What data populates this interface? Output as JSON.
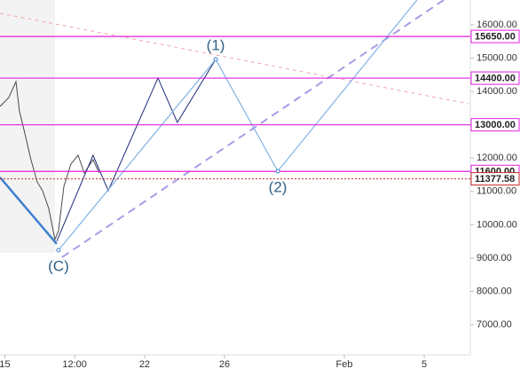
{
  "chart_data": {
    "type": "line",
    "xlim": [
      14.76,
      38.31
    ],
    "ylim": [
      6096,
      16745
    ],
    "xticks": [
      15,
      {
        "value": 18.5,
        "label": "12:00"
      },
      22,
      26,
      {
        "value": 32,
        "label": "Feb"
      },
      {
        "value": 36,
        "label": "5"
      }
    ],
    "yticks": [
      {
        "value": 7000,
        "label": "7000.00"
      },
      {
        "value": 8000,
        "label": "8000.00"
      },
      {
        "value": 9000,
        "label": "9000.00"
      },
      {
        "value": 10000,
        "label": "10000.00"
      },
      {
        "value": 11000,
        "label": "11000.00"
      },
      {
        "value": 12000,
        "label": "12000.00"
      },
      {
        "value": 13000,
        "label": "13000.00"
      },
      {
        "value": 14000,
        "label": "14000.00"
      },
      {
        "value": 15000,
        "label": "15000.00"
      },
      {
        "value": 16000,
        "label": "16000.00"
      }
    ],
    "series": [
      {
        "color": "#f4a6a6",
        "dash": "4 4",
        "width": 1,
        "x": [
          14.76,
          38.22
        ],
        "values": [
          16346,
          13630
        ]
      },
      {
        "color": "#a99ce6",
        "dash": "9 6",
        "width": 2,
        "x": [
          17.87,
          36.98
        ],
        "values": [
          9025,
          16745
        ]
      },
      {
        "color": "#3f7fd0",
        "width": 2.5,
        "x": [
          14.76,
          17.6
        ],
        "values": [
          11421,
          9424
        ]
      },
      {
        "color": "#4a4a4a",
        "width": 1,
        "x": [
          14.76,
          15.2,
          15.56,
          15.73,
          16.0,
          16.31,
          16.62,
          16.89,
          17.2,
          17.51,
          17.69,
          17.96,
          18.31,
          18.67,
          18.98,
          19.42,
          19.73
        ],
        "values": [
          13551,
          13817,
          14296,
          13417,
          12752,
          11953,
          11288,
          11021,
          10489,
          9557,
          9823,
          11155,
          11820,
          12086,
          11554,
          11953,
          11554
        ]
      },
      {
        "color": "#1e2a78",
        "width": 1,
        "x": [
          17.6,
          19.42,
          20.18,
          22.67,
          23.64,
          25.56
        ],
        "values": [
          9504,
          12086,
          11021,
          14403,
          13071,
          14962
        ]
      },
      {
        "color": "#7fb2e5",
        "width": 1.2,
        "x": [
          17.69,
          25.56,
          28.67,
          35.64
        ],
        "values": [
          9238,
          14962,
          11607,
          16745
        ]
      }
    ],
    "levels": {
      "color": "#e020e0",
      "values": [
        15650,
        14400,
        13000,
        11600
      ],
      "value_labels": [
        "15650.00",
        "14400.00",
        "13000.00",
        "11600.00"
      ]
    },
    "last_price": {
      "color": "#c62828",
      "value": 11377.58
    },
    "annotations": [
      {
        "text": "(1)",
        "x": 25.56,
        "y": 14962
      },
      {
        "text": "(2)",
        "x": 28.67,
        "y": 11607
      },
      {
        "text": "(C)",
        "x": 17.69,
        "y": 9238
      }
    ]
  }
}
